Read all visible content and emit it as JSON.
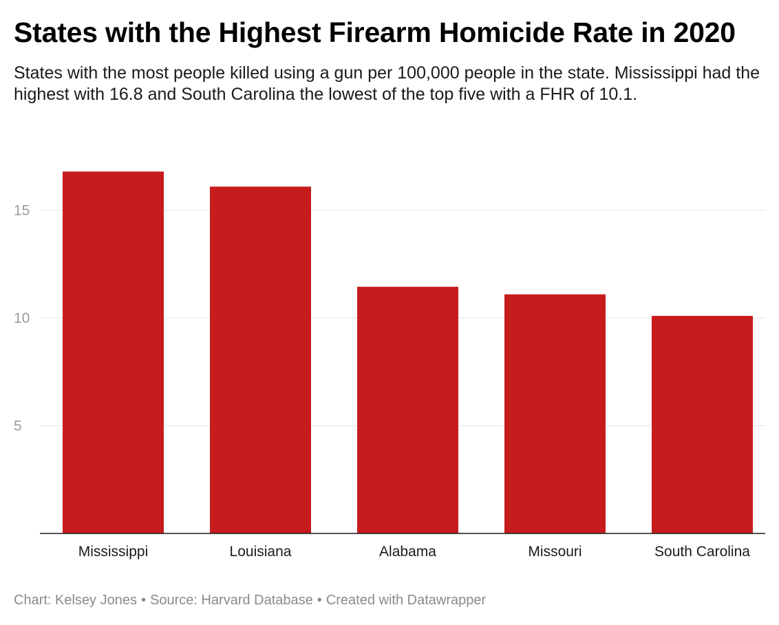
{
  "chart_data": {
    "type": "bar",
    "title": "States with the Highest Firearm Homicide Rate in 2020",
    "subtitle": "States with the most people killed using a gun per 100,000 people in the state. Mississippi had the highest with 16.8 and South Carolina the lowest of the top five with a FHR of 10.1.",
    "categories": [
      "Mississippi",
      "Louisiana",
      "Alabama",
      "Missouri",
      "South Carolina"
    ],
    "values": [
      16.8,
      16.1,
      11.45,
      11.1,
      10.1
    ],
    "xlabel": "",
    "ylabel": "",
    "ylim": [
      0,
      17.5
    ],
    "yticks": [
      5,
      10,
      15
    ],
    "ytick_labels": [
      "5",
      "10",
      "15"
    ],
    "grid": true,
    "bar_color": "#c71c1e",
    "gridline_color": "#e5e5e5",
    "axis_tick_color": "#9a9a9a"
  },
  "footer": {
    "chart_credit": "Chart: Kelsey Jones",
    "separator": "•",
    "source": "Source: Harvard Database",
    "created_with": "Created with Datawrapper"
  }
}
